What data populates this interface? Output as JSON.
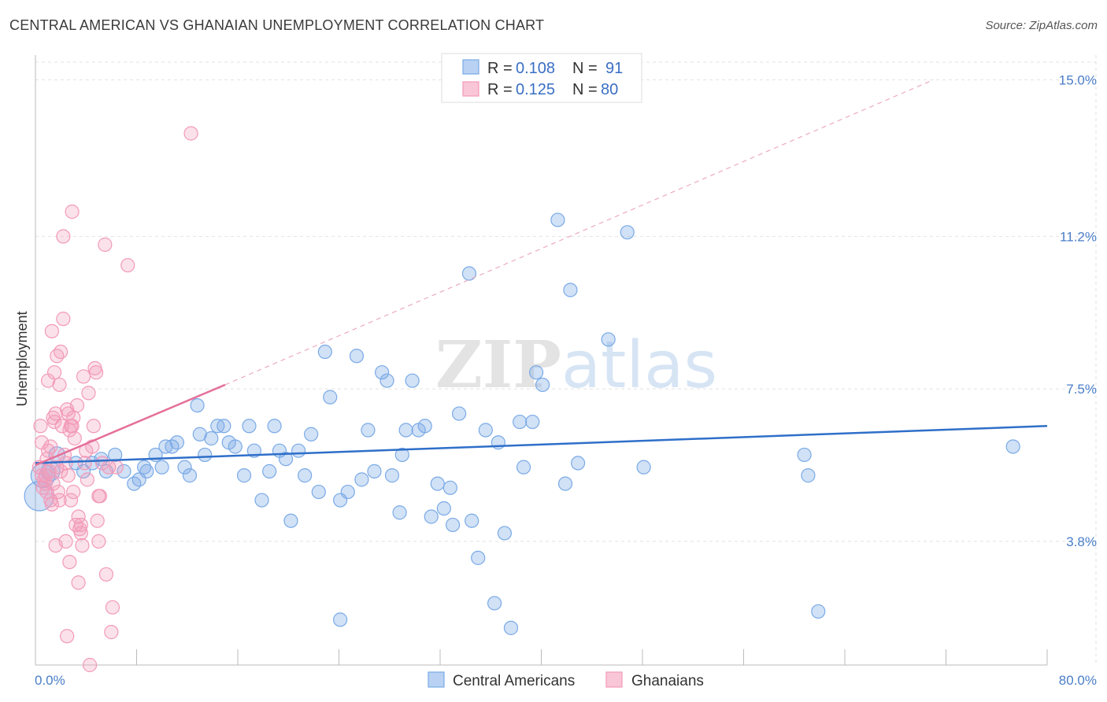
{
  "title": "CENTRAL AMERICAN VS GHANAIAN UNEMPLOYMENT CORRELATION CHART",
  "source": "Source: ZipAtlas.com",
  "chart_data": {
    "type": "scatter",
    "title": "CENTRAL AMERICAN VS GHANAIAN UNEMPLOYMENT CORRELATION CHART",
    "xlabel": "",
    "ylabel": "Unemployment",
    "xlim": [
      0,
      80
    ],
    "ylim": [
      0.8,
      15.6
    ],
    "x_tick_labels": [
      "0.0%",
      "80.0%"
    ],
    "y_ticks": [
      3.8,
      7.5,
      11.2,
      15.0
    ],
    "y_tick_labels": [
      "3.8%",
      "7.5%",
      "11.2%",
      "15.0%"
    ],
    "grid": true,
    "watermark": "ZIPatlas",
    "legend": {
      "top": [
        {
          "r_label": "R =",
          "r_value": "0.108",
          "n_label": "N =",
          "n_value": "91"
        },
        {
          "r_label": "R =",
          "r_value": "0.125",
          "n_label": "N =",
          "n_value": "80"
        }
      ],
      "bottom": [
        "Central Americans",
        "Ghanaians"
      ]
    },
    "colors": {
      "central": "#7aaae6",
      "central_line": "#2f6fc9",
      "ghanaian": "#f29ab8",
      "ghanaian_line": "#e5709a"
    },
    "series": [
      {
        "name": "Central Americans",
        "color": "#7aaae6",
        "trend": {
          "x0": 0,
          "y0": 5.7,
          "x1": 80,
          "y1": 6.6
        },
        "points": [
          [
            0.3,
            4.9,
            2.2
          ],
          [
            0.6,
            5.4,
            1.8
          ],
          [
            1.2,
            5.5,
            1.4
          ],
          [
            1.7,
            5.9,
            1.2
          ],
          [
            3.2,
            5.7,
            1.0
          ],
          [
            3.8,
            5.5,
            1.0
          ],
          [
            4.5,
            5.7,
            1.0
          ],
          [
            5.2,
            5.8,
            1.0
          ],
          [
            5.6,
            5.5,
            1.0
          ],
          [
            6.3,
            5.9,
            1.0
          ],
          [
            7.0,
            5.5,
            1.0
          ],
          [
            7.8,
            5.2,
            1.0
          ],
          [
            8.2,
            5.3,
            1.0
          ],
          [
            8.8,
            5.5,
            1.0
          ],
          [
            9.5,
            5.9,
            1.0
          ],
          [
            10.0,
            5.6,
            1.0
          ],
          [
            10.3,
            6.1,
            1.0
          ],
          [
            10.8,
            6.1,
            1.0
          ],
          [
            11.2,
            6.2,
            1.0
          ],
          [
            11.8,
            5.6,
            1.0
          ],
          [
            12.2,
            5.4,
            1.0
          ],
          [
            12.8,
            7.1,
            1.0
          ],
          [
            13.4,
            5.9,
            1.0
          ],
          [
            13.9,
            6.3,
            1.0
          ],
          [
            14.4,
            6.6,
            1.0
          ],
          [
            14.9,
            6.6,
            1.0
          ],
          [
            15.3,
            6.2,
            1.0
          ],
          [
            15.8,
            6.1,
            1.0
          ],
          [
            16.5,
            5.4,
            1.0
          ],
          [
            16.9,
            6.6,
            1.0
          ],
          [
            17.3,
            6.0,
            1.0
          ],
          [
            17.9,
            4.8,
            1.0
          ],
          [
            18.5,
            5.5,
            1.0
          ],
          [
            18.9,
            6.6,
            1.0
          ],
          [
            19.3,
            6.0,
            1.0
          ],
          [
            19.8,
            5.8,
            1.0
          ],
          [
            20.2,
            4.3,
            1.0
          ],
          [
            20.8,
            6.0,
            1.0
          ],
          [
            21.3,
            5.4,
            1.0
          ],
          [
            21.8,
            6.4,
            1.0
          ],
          [
            22.4,
            5.0,
            1.0
          ],
          [
            22.9,
            8.4,
            1.0
          ],
          [
            23.3,
            7.3,
            1.0
          ],
          [
            24.1,
            4.8,
            1.0
          ],
          [
            24.7,
            5.0,
            1.0
          ],
          [
            25.4,
            8.3,
            1.0
          ],
          [
            25.8,
            5.3,
            1.0
          ],
          [
            26.3,
            6.5,
            1.0
          ],
          [
            26.8,
            5.5,
            1.0
          ],
          [
            27.4,
            7.9,
            1.0
          ],
          [
            27.8,
            7.7,
            1.0
          ],
          [
            28.2,
            5.4,
            1.0
          ],
          [
            28.8,
            4.5,
            1.0
          ],
          [
            29.3,
            6.5,
            1.0
          ],
          [
            29.8,
            7.7,
            1.0
          ],
          [
            30.3,
            6.5,
            1.0
          ],
          [
            30.8,
            6.6,
            1.0
          ],
          [
            31.3,
            4.4,
            1.0
          ],
          [
            31.8,
            5.2,
            1.0
          ],
          [
            32.3,
            4.6,
            1.0
          ],
          [
            32.8,
            5.1,
            1.0
          ],
          [
            33.0,
            4.2,
            1.0
          ],
          [
            33.5,
            6.9,
            1.0
          ],
          [
            34.3,
            10.3,
            1.0
          ],
          [
            34.5,
            4.3,
            1.0
          ],
          [
            35.0,
            3.4,
            1.0
          ],
          [
            35.6,
            6.5,
            1.0
          ],
          [
            36.3,
            2.3,
            1.0
          ],
          [
            36.6,
            6.2,
            1.0
          ],
          [
            37.1,
            4.0,
            1.0
          ],
          [
            37.6,
            1.7,
            1.0
          ],
          [
            38.3,
            6.7,
            1.0
          ],
          [
            38.6,
            5.6,
            1.0
          ],
          [
            39.3,
            6.7,
            1.0
          ],
          [
            39.6,
            7.9,
            1.0
          ],
          [
            40.1,
            7.6,
            1.0
          ],
          [
            41.3,
            11.6,
            1.0
          ],
          [
            41.9,
            5.2,
            1.0
          ],
          [
            42.3,
            9.9,
            1.0
          ],
          [
            45.3,
            8.7,
            1.0
          ],
          [
            46.8,
            11.3,
            1.0
          ],
          [
            48.1,
            5.6,
            1.0
          ],
          [
            60.8,
            5.9,
            1.0
          ],
          [
            61.1,
            5.4,
            1.0
          ],
          [
            61.9,
            2.1,
            1.0
          ],
          [
            24.1,
            1.9,
            1.0
          ],
          [
            77.3,
            6.1,
            1.0
          ],
          [
            42.9,
            5.7,
            1.0
          ],
          [
            8.6,
            5.6,
            1.0
          ],
          [
            13.0,
            6.4,
            1.0
          ],
          [
            29.0,
            5.9,
            1.0
          ]
        ]
      },
      {
        "name": "Ghanaians",
        "color": "#f29ab8",
        "trend": {
          "x0": 0,
          "y0": 5.65,
          "x1": 15,
          "y1": 7.6,
          "dash_to_x": 71,
          "dash_to_y": 15.0
        },
        "points": [
          [
            0.3,
            5.6,
            1.0
          ],
          [
            0.4,
            6.6,
            1.0
          ],
          [
            0.5,
            5.4,
            1.0
          ],
          [
            0.6,
            5.1,
            1.0
          ],
          [
            0.7,
            5.3,
            1.0
          ],
          [
            0.8,
            5.2,
            1.0
          ],
          [
            0.9,
            5.8,
            1.0
          ],
          [
            1.0,
            6.0,
            1.0
          ],
          [
            1.0,
            7.7,
            1.0
          ],
          [
            1.1,
            5.5,
            1.0
          ],
          [
            1.2,
            6.1,
            1.0
          ],
          [
            1.2,
            4.8,
            1.0
          ],
          [
            1.3,
            8.9,
            1.0
          ],
          [
            1.4,
            5.2,
            1.0
          ],
          [
            1.5,
            7.9,
            1.0
          ],
          [
            1.5,
            6.7,
            1.0
          ],
          [
            1.6,
            6.9,
            1.0
          ],
          [
            1.7,
            5.6,
            1.0
          ],
          [
            1.7,
            8.3,
            1.0
          ],
          [
            1.8,
            5.0,
            1.0
          ],
          [
            1.9,
            4.8,
            1.0
          ],
          [
            2.0,
            8.4,
            1.0
          ],
          [
            2.0,
            5.5,
            1.0
          ],
          [
            2.1,
            6.6,
            1.0
          ],
          [
            2.2,
            9.2,
            1.0
          ],
          [
            2.2,
            11.2,
            1.0
          ],
          [
            2.3,
            5.9,
            1.0
          ],
          [
            2.4,
            5.7,
            1.0
          ],
          [
            2.5,
            7.0,
            1.0
          ],
          [
            2.6,
            6.9,
            1.0
          ],
          [
            2.6,
            5.4,
            1.0
          ],
          [
            2.7,
            6.5,
            1.0
          ],
          [
            2.8,
            4.8,
            1.0
          ],
          [
            2.9,
            6.6,
            1.0
          ],
          [
            2.9,
            11.8,
            1.0
          ],
          [
            3.0,
            6.8,
            1.0
          ],
          [
            3.1,
            6.3,
            1.0
          ],
          [
            3.2,
            4.2,
            1.0
          ],
          [
            3.3,
            7.1,
            1.0
          ],
          [
            3.4,
            4.4,
            1.0
          ],
          [
            3.4,
            2.8,
            1.0
          ],
          [
            3.5,
            4.1,
            1.0
          ],
          [
            3.6,
            4.2,
            1.0
          ],
          [
            3.7,
            3.7,
            1.0
          ],
          [
            3.8,
            7.8,
            1.0
          ],
          [
            3.9,
            5.7,
            1.0
          ],
          [
            4.0,
            6.0,
            1.0
          ],
          [
            4.1,
            5.3,
            1.0
          ],
          [
            4.2,
            7.4,
            1.0
          ],
          [
            4.3,
            0.8,
            1.0
          ],
          [
            4.5,
            6.1,
            1.0
          ],
          [
            4.6,
            6.6,
            1.0
          ],
          [
            4.7,
            8.0,
            1.0
          ],
          [
            4.8,
            7.9,
            1.0
          ],
          [
            4.9,
            4.3,
            1.0
          ],
          [
            5.0,
            3.8,
            1.0
          ],
          [
            5.0,
            4.9,
            1.0
          ],
          [
            5.1,
            4.9,
            1.0
          ],
          [
            5.3,
            5.7,
            1.0
          ],
          [
            5.5,
            11.0,
            1.0
          ],
          [
            5.6,
            3.0,
            1.0
          ],
          [
            5.8,
            5.6,
            1.0
          ],
          [
            6.0,
            1.6,
            1.0
          ],
          [
            6.1,
            2.2,
            1.0
          ],
          [
            6.4,
            5.6,
            1.0
          ],
          [
            7.3,
            10.5,
            1.0
          ],
          [
            12.3,
            13.7,
            1.0
          ],
          [
            2.5,
            1.5,
            1.0
          ],
          [
            2.7,
            3.3,
            1.0
          ],
          [
            1.6,
            3.7,
            1.0
          ],
          [
            2.8,
            6.6,
            1.0
          ],
          [
            1.9,
            7.6,
            1.0
          ],
          [
            0.8,
            5.4,
            1.0
          ],
          [
            1.3,
            4.7,
            1.0
          ],
          [
            3.0,
            5.0,
            1.0
          ],
          [
            2.4,
            3.8,
            1.0
          ],
          [
            3.6,
            4.0,
            1.0
          ],
          [
            0.5,
            6.2,
            1.0
          ],
          [
            1.4,
            6.8,
            1.0
          ],
          [
            0.9,
            5.0,
            1.0
          ]
        ]
      }
    ]
  }
}
